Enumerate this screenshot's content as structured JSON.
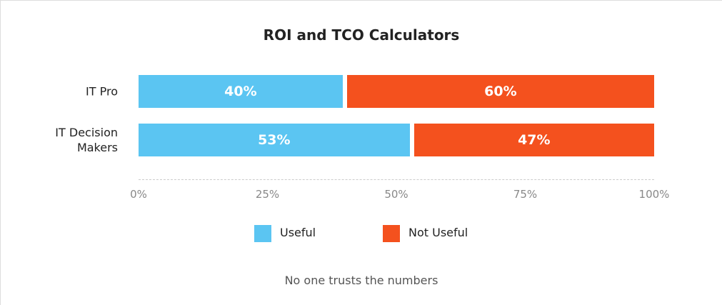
{
  "chart_data": {
    "type": "stacked_barh",
    "title": "ROI and TCO Calculators",
    "categories": [
      "IT Pro",
      "IT Decision Makers"
    ],
    "series": [
      {
        "name": "Useful",
        "color": "#5bc5f2",
        "values": [
          40,
          53
        ],
        "value_labels": [
          "40%",
          "53%"
        ]
      },
      {
        "name": "Not Useful",
        "color": "#f4511e",
        "values": [
          60,
          47
        ],
        "value_labels": [
          "60%",
          "47%"
        ]
      }
    ],
    "xlim": [
      0,
      100
    ],
    "xticks": [
      {
        "value": 0,
        "label": "0%"
      },
      {
        "value": 25,
        "label": "25%"
      },
      {
        "value": 50,
        "label": "50%"
      },
      {
        "value": 75,
        "label": "75%"
      },
      {
        "value": 100,
        "label": "100%"
      }
    ],
    "note": "No one trusts the numbers"
  }
}
